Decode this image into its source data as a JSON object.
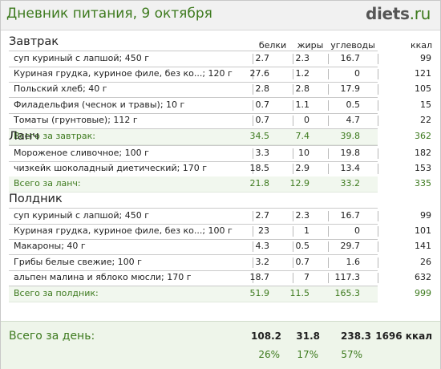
{
  "header": {
    "title": "Дневник питания, 9 октября",
    "logo_main": "diets",
    "logo_tld": ".ru"
  },
  "columns": {
    "protein": "белки",
    "fat": "жиры",
    "carbs": "углеводы",
    "kcal": "ккал"
  },
  "sections": [
    {
      "title": "Завтрак",
      "items": [
        {
          "name": "суп куриный с лапшой; 450 г",
          "protein": "2.7",
          "fat": "2.3",
          "carbs": "16.7",
          "kcal": "99"
        },
        {
          "name": "Куриная грудка, куриное филе, без ко...; 120 г",
          "protein": "27.6",
          "fat": "1.2",
          "carbs": "0",
          "kcal": "121"
        },
        {
          "name": "Польский хлеб; 40 г",
          "protein": "2.8",
          "fat": "2.8",
          "carbs": "17.9",
          "kcal": "105"
        },
        {
          "name": "Филадельфия (чеснок и травы); 10 г",
          "protein": "0.7",
          "fat": "1.1",
          "carbs": "0.5",
          "kcal": "15"
        },
        {
          "name": "Томаты (грунтовые); 112 г",
          "protein": "0.7",
          "fat": "0",
          "carbs": "4.7",
          "kcal": "22"
        }
      ],
      "total": {
        "name": "Всего за завтрак:",
        "protein": "34.5",
        "fat": "7.4",
        "carbs": "39.8",
        "kcal": "362"
      }
    },
    {
      "title": "Ланч",
      "items": [
        {
          "name": "Мороженое сливочное; 100 г",
          "protein": "3.3",
          "fat": "10",
          "carbs": "19.8",
          "kcal": "182"
        },
        {
          "name": "чизкейк шоколадный диетический; 170 г",
          "protein": "18.5",
          "fat": "2.9",
          "carbs": "13.4",
          "kcal": "153"
        }
      ],
      "total": {
        "name": "Всего за ланч:",
        "protein": "21.8",
        "fat": "12.9",
        "carbs": "33.2",
        "kcal": "335"
      }
    },
    {
      "title": "Полдник",
      "items": [
        {
          "name": "суп куриный с лапшой; 450 г",
          "protein": "2.7",
          "fat": "2.3",
          "carbs": "16.7",
          "kcal": "99"
        },
        {
          "name": "Куриная грудка, куриное филе, без ко...; 100 г",
          "protein": "23",
          "fat": "1",
          "carbs": "0",
          "kcal": "101"
        },
        {
          "name": "Макароны; 40 г",
          "protein": "4.3",
          "fat": "0.5",
          "carbs": "29.7",
          "kcal": "141"
        },
        {
          "name": "Грибы белые свежие; 100 г",
          "protein": "3.2",
          "fat": "0.7",
          "carbs": "1.6",
          "kcal": "26"
        },
        {
          "name": "альпен малина и яблоко мюсли; 170 г",
          "protein": "18.7",
          "fat": "7",
          "carbs": "117.3",
          "kcal": "632"
        }
      ],
      "total": {
        "name": "Всего за полдник:",
        "protein": "51.9",
        "fat": "11.5",
        "carbs": "165.3",
        "kcal": "999"
      }
    }
  ],
  "day_total": {
    "label": "Всего за день:",
    "protein": "108.2",
    "fat": "31.8",
    "carbs": "238.3",
    "kcal": "1696 ккал",
    "protein_pct": "26%",
    "fat_pct": "17%",
    "carbs_pct": "57%"
  },
  "colors": {
    "accent_green": "#3d7a1e",
    "header_bg": "#f1f1f1",
    "total_bg": "#f1f7ee"
  }
}
